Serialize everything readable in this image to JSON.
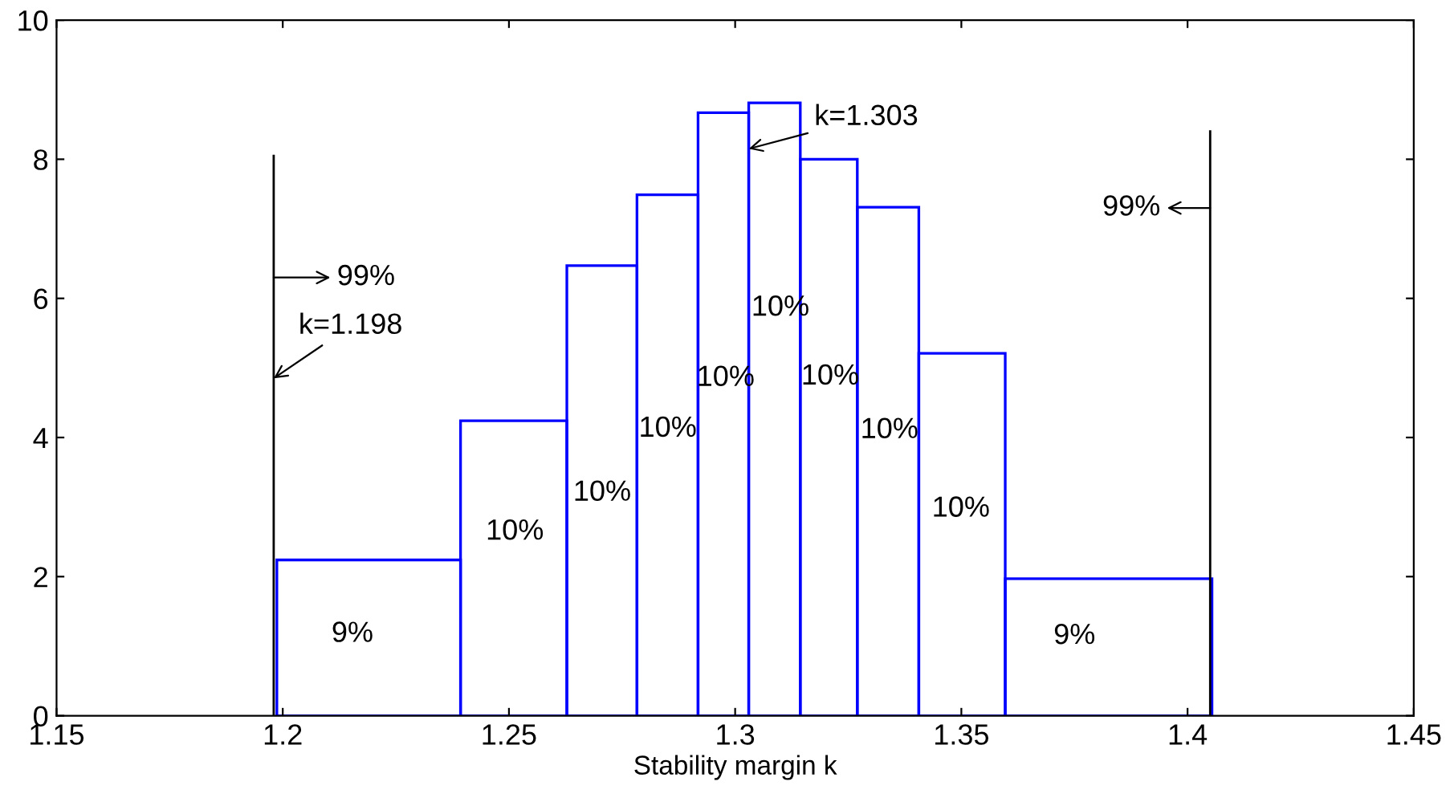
{
  "chart_data": {
    "type": "histogram",
    "xlabel": "Stability margin k",
    "bins": [
      1.1987,
      1.2393,
      1.2628,
      1.2783,
      1.2918,
      1.303,
      1.3144,
      1.327,
      1.3406,
      1.3597,
      1.4054
    ],
    "values": [
      2.24,
      4.24,
      6.47,
      7.49,
      8.67,
      8.81,
      8.0,
      7.31,
      5.21,
      1.97
    ],
    "color": "#0000ff",
    "xlim": [
      1.15,
      1.45
    ],
    "xticks": [
      1.15,
      1.2,
      1.25,
      1.3,
      1.35,
      1.4,
      1.45
    ],
    "ylim": [
      0,
      10
    ],
    "yticks": [
      0,
      2,
      4,
      6,
      8,
      10
    ],
    "ref_lines": [
      {
        "axis": "x",
        "value": 1.198,
        "color": "#000000"
      },
      {
        "axis": "x",
        "value": 1.405,
        "color": "#000000"
      }
    ],
    "annotations": [
      {
        "text": "99%",
        "x": 1.198,
        "y": 6.3
      },
      {
        "text": "k=1.198",
        "x": 1.198,
        "y": 4.85
      },
      {
        "text": "k=1.303",
        "x": 1.303,
        "y": 8.15
      },
      {
        "text": "99%",
        "x": 1.405,
        "y": 7.3
      },
      "9%",
      "10%",
      "10%",
      "10%",
      "10%",
      "10%",
      "10%",
      "10%",
      "10%",
      "9%"
    ],
    "grid": false
  }
}
